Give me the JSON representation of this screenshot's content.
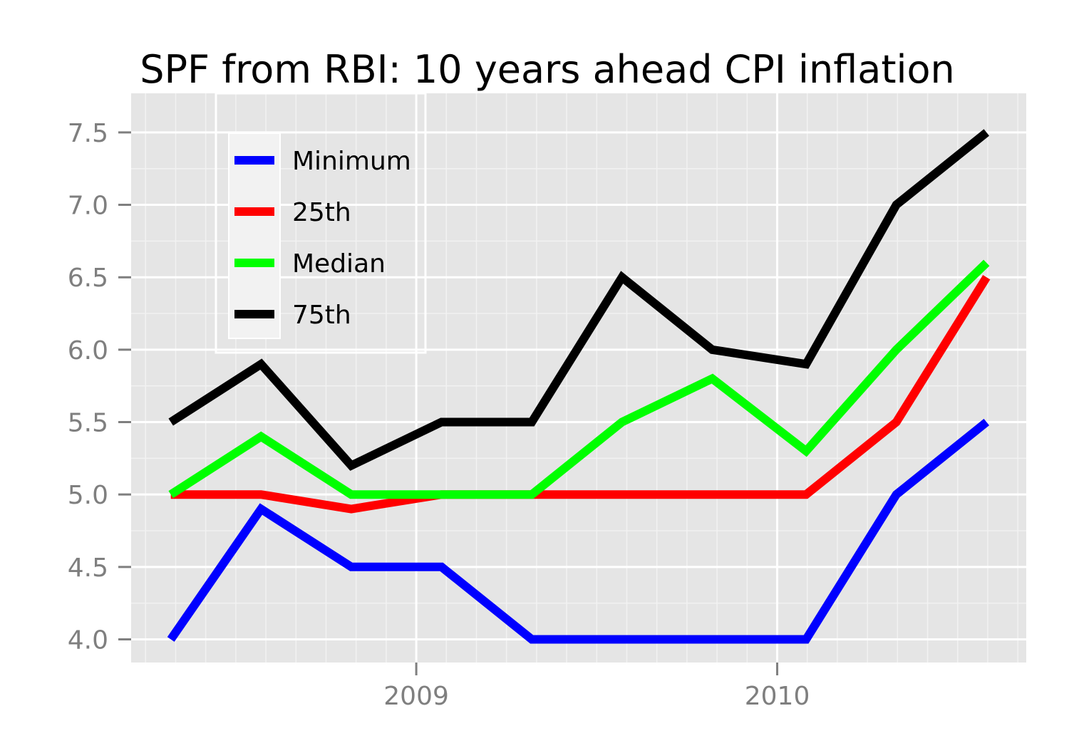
{
  "chart_data": {
    "type": "line",
    "title": "SPF from RBI: 10 years ahead CPI inflation",
    "xlabel": "",
    "ylabel": "",
    "x": [
      2008.32,
      2008.57,
      2008.82,
      2009.07,
      2009.32,
      2009.57,
      2009.82,
      2010.08,
      2010.33,
      2010.58
    ],
    "xlim": [
      2008.21,
      2010.69
    ],
    "ylim": [
      3.84,
      7.77
    ],
    "x_ticks": [
      2009,
      2010
    ],
    "x_tick_labels": [
      "2009",
      "2010"
    ],
    "y_ticks": [
      4.0,
      4.5,
      5.0,
      5.5,
      6.0,
      6.5,
      7.0,
      7.5
    ],
    "y_tick_labels": [
      "4.0",
      "4.5",
      "5.0",
      "5.5",
      "6.0",
      "6.5",
      "7.0",
      "7.5"
    ],
    "grid": true,
    "legend_position": "top-left",
    "series": [
      {
        "name": "Minimum",
        "color": "#0000ff",
        "values": [
          4.0,
          4.9,
          4.5,
          4.5,
          4.0,
          4.0,
          4.0,
          4.0,
          5.0,
          5.5
        ]
      },
      {
        "name": "25th",
        "color": "#ff0000",
        "values": [
          5.0,
          5.0,
          4.9,
          5.0,
          5.0,
          5.0,
          5.0,
          5.0,
          5.5,
          6.5
        ]
      },
      {
        "name": "Median",
        "color": "#00ff00",
        "values": [
          5.0,
          5.4,
          5.0,
          5.0,
          5.0,
          5.5,
          5.8,
          5.3,
          6.0,
          6.6
        ]
      },
      {
        "name": "75th",
        "color": "#000000",
        "values": [
          5.5,
          5.9,
          5.2,
          5.5,
          5.5,
          6.5,
          6.0,
          5.9,
          7.0,
          7.5
        ]
      }
    ]
  }
}
